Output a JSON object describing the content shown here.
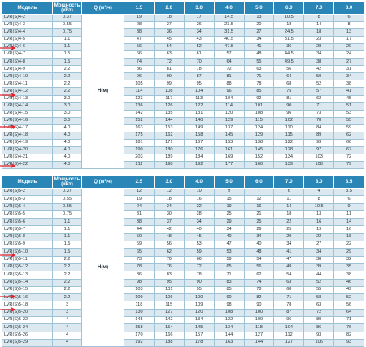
{
  "colors": {
    "header": "#2b86b8",
    "stripe": "#dbe8ef",
    "border": "#9fc3d6",
    "arrow": "#e0202a"
  },
  "tables": [
    {
      "header": {
        "model": "Модель",
        "power_line1": "Мощность",
        "power_line2": "(кВт)",
        "q": "Q (м³/ч)"
      },
      "flows": [
        "1.5",
        "2.0",
        "3.0",
        "4.0",
        "5.0",
        "6.0",
        "7.0",
        "8.0"
      ],
      "h_label": "H(м)",
      "rows": [
        {
          "model": "LVR(S)4-2",
          "power": "0.37",
          "values": [
            "19",
            "18",
            "17",
            "14.5",
            "13",
            "10.5",
            "8",
            "6"
          ]
        },
        {
          "model": "LVR(S)4-3",
          "power": "0.55",
          "values": [
            "28",
            "27",
            "26",
            "23.5",
            "20",
            "18",
            "14",
            "8"
          ]
        },
        {
          "model": "LVR(S)4-4",
          "power": "0.75",
          "values": [
            "38",
            "36",
            "34",
            "31.5",
            "27",
            "24.5",
            "18",
            "13"
          ]
        },
        {
          "model": "LVR(S)4-5",
          "power": "1.1",
          "values": [
            "47",
            "45",
            "43",
            "40.5",
            "34",
            "31.5",
            "23",
            "17"
          ]
        },
        {
          "model": "LVR(S)4-6",
          "power": "1.1",
          "values": [
            "56",
            "54",
            "52",
            "47.5",
            "41",
            "36",
            "28",
            "20"
          ]
        },
        {
          "model": "LVR(S)4-7",
          "power": "1.5",
          "values": [
            "66",
            "63",
            "61",
            "57",
            "48",
            "44.5",
            "34",
            "24"
          ]
        },
        {
          "model": "LVR(S)4-8",
          "power": "1.5",
          "values": [
            "74",
            "72",
            "70",
            "64",
            "55",
            "49.5",
            "38",
            "27"
          ]
        },
        {
          "model": "LVR(S)4-9",
          "power": "2.2",
          "values": [
            "86",
            "81",
            "78",
            "72",
            "63",
            "56",
            "42",
            "31"
          ]
        },
        {
          "model": "LVR(S)4-10",
          "power": "2.2",
          "values": [
            "96",
            "90",
            "87",
            "81",
            "71",
            "64",
            "50",
            "34"
          ]
        },
        {
          "model": "LVR(S)4-11",
          "power": "2.2",
          "values": [
            "105",
            "99",
            "95",
            "88",
            "78",
            "68",
            "52",
            "38"
          ]
        },
        {
          "model": "LVR(S)4-12",
          "power": "2.2",
          "values": [
            "114",
            "108",
            "104",
            "96",
            "85",
            "75",
            "57",
            "41"
          ]
        },
        {
          "model": "LVR(S)4-13",
          "power": "3.0",
          "values": [
            "123",
            "117",
            "113",
            "104",
            "92",
            "81",
            "62",
            "45"
          ]
        },
        {
          "model": "LVR(S)4-14",
          "power": "3.0",
          "values": [
            "136",
            "126",
            "122",
            "114",
            "101",
            "90",
            "71",
            "51"
          ]
        },
        {
          "model": "LVR(S)4-15",
          "power": "3.0",
          "values": [
            "142",
            "135",
            "131",
            "120",
            "108",
            "96",
            "73",
            "53"
          ]
        },
        {
          "model": "LVR(S)4-16",
          "power": "3.0",
          "values": [
            "152",
            "144",
            "140",
            "129",
            "115",
            "102",
            "78",
            "55"
          ]
        },
        {
          "model": "LVR(S)4-17",
          "power": "4.0",
          "values": [
            "163",
            "153",
            "149",
            "137",
            "124",
            "110",
            "84",
            "59"
          ]
        },
        {
          "model": "LVR(S)4-18",
          "power": "4.0",
          "values": [
            "175",
            "162",
            "158",
            "145",
            "129",
            "115",
            "89",
            "62"
          ]
        },
        {
          "model": "LVR(S)4-19",
          "power": "4.0",
          "values": [
            "181",
            "171",
            "167",
            "153",
            "138",
            "122",
            "93",
            "66"
          ]
        },
        {
          "model": "LVR(S)4-20",
          "power": "4.0",
          "values": [
            "190",
            "180",
            "176",
            "161",
            "145",
            "128",
            "97",
            "67"
          ]
        },
        {
          "model": "LVR(S)4-21",
          "power": "4.0",
          "values": [
            "203",
            "189",
            "184",
            "169",
            "152",
            "134",
            "103",
            "72"
          ]
        },
        {
          "model": "LVR(S)4-22",
          "power": "4.0",
          "values": [
            "211",
            "198",
            "192",
            "177",
            "160",
            "139",
            "108",
            "79"
          ]
        }
      ]
    },
    {
      "header": {
        "model": "Модель",
        "power_line1": "Мощность",
        "power_line2": "(кВт)",
        "q": "Q (м³/ч)"
      },
      "flows": [
        "2.5",
        "3.0",
        "4.0",
        "5.0",
        "6.0",
        "7.0",
        "8.0",
        "8.5"
      ],
      "h_label": "H(м)",
      "rows": [
        {
          "model": "LVR(S)5-2",
          "power": "0.37",
          "values": [
            "12",
            "12",
            "10",
            "9",
            "7",
            "6",
            "4",
            "3.5"
          ]
        },
        {
          "model": "LVR(S)5-3",
          "power": "0.55",
          "values": [
            "19",
            "18",
            "16",
            "15",
            "12",
            "11",
            "8",
            "6"
          ]
        },
        {
          "model": "LVR(S)5-4",
          "power": "0.55",
          "values": [
            "24",
            "24",
            "22",
            "19",
            "16",
            "14",
            "10.5",
            "9"
          ]
        },
        {
          "model": "LVR(S)5-5",
          "power": "0.75",
          "values": [
            "31",
            "30",
            "28",
            "25",
            "21",
            "18",
            "13",
            "11"
          ]
        },
        {
          "model": "LVR(S)5-6",
          "power": "1.1",
          "values": [
            "38",
            "37",
            "34",
            "29",
            "25",
            "22",
            "16",
            "14"
          ]
        },
        {
          "model": "LVR(S)5-7",
          "power": "1.1",
          "values": [
            "44",
            "42",
            "40",
            "34",
            "29",
            "25",
            "19",
            "16"
          ]
        },
        {
          "model": "LVR(S)5-8",
          "power": "1.1",
          "values": [
            "50",
            "48",
            "45",
            "40",
            "34",
            "29",
            "22",
            "18"
          ]
        },
        {
          "model": "LVR(S)5-9",
          "power": "1.5",
          "values": [
            "59",
            "56",
            "53",
            "47",
            "40",
            "34",
            "27",
            "22"
          ]
        },
        {
          "model": "LVR(S)5-10",
          "power": "1.5",
          "values": [
            "65",
            "62",
            "59",
            "53",
            "48",
            "41",
            "34",
            "29"
          ]
        },
        {
          "model": "LVR(S)5-11",
          "power": "2.2",
          "values": [
            "73",
            "70",
            "66",
            "59",
            "54",
            "47",
            "38",
            "32"
          ]
        },
        {
          "model": "LVR(S)5-12",
          "power": "2.2",
          "values": [
            "78",
            "76",
            "72",
            "65",
            "56",
            "49",
            "39",
            "35"
          ]
        },
        {
          "model": "LVR(S)5-13",
          "power": "2.2",
          "values": [
            "86",
            "83",
            "78",
            "71",
            "62",
            "54",
            "44",
            "38"
          ]
        },
        {
          "model": "LVR(S)5-14",
          "power": "2.2",
          "values": [
            "98",
            "95",
            "90",
            "83",
            "74",
            "63",
            "52",
            "46"
          ]
        },
        {
          "model": "LVR(S)5-15",
          "power": "2.2",
          "values": [
            "103",
            "101",
            "95",
            "85",
            "78",
            "68",
            "55",
            "49"
          ]
        },
        {
          "model": "LVR(S)5-16",
          "power": "2.2",
          "values": [
            "109",
            "106",
            "100",
            "90",
            "82",
            "71",
            "58",
            "52"
          ]
        },
        {
          "model": "LVR(S)5-18",
          "power": "3",
          "values": [
            "118",
            "115",
            "109",
            "98",
            "90",
            "78",
            "63",
            "56"
          ]
        },
        {
          "model": "LVR(S)5-20",
          "power": "3",
          "values": [
            "130",
            "127",
            "120",
            "108",
            "100",
            "87",
            "72",
            "64"
          ]
        },
        {
          "model": "LVR(S)5-22",
          "power": "4",
          "values": [
            "145",
            "142",
            "134",
            "122",
            "109",
            "96",
            "80",
            "71"
          ]
        },
        {
          "model": "LVR(S)5-24",
          "power": "4",
          "values": [
            "158",
            "154",
            "145",
            "134",
            "118",
            "104",
            "86",
            "76"
          ]
        },
        {
          "model": "LVR(S)5-26",
          "power": "4",
          "values": [
            "170",
            "166",
            "157",
            "144",
            "127",
            "112",
            "93",
            "82"
          ]
        },
        {
          "model": "LVR(S)5-29",
          "power": "4",
          "values": [
            "192",
            "188",
            "178",
            "163",
            "144",
            "127",
            "106",
            "93"
          ]
        }
      ]
    }
  ]
}
